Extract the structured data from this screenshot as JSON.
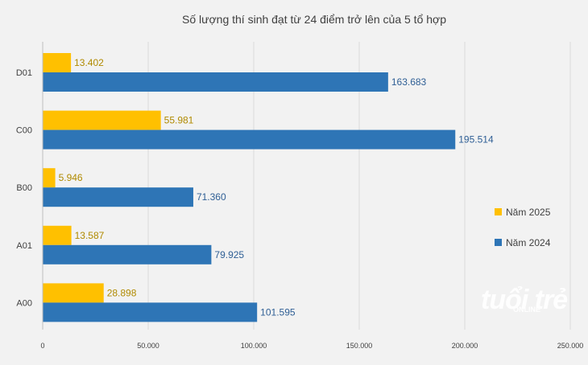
{
  "chart_data": {
    "type": "bar",
    "orientation": "horizontal",
    "title": "Số lượng thí  sinh đạt từ 24 điểm trở lên của 5 tổ hợp",
    "categories": [
      "D01",
      "C00",
      "B00",
      "A01",
      "A00"
    ],
    "series": [
      {
        "name": "Năm 2025",
        "color": "#ffc000",
        "values": [
          13402,
          55981,
          5946,
          13587,
          28898
        ],
        "labels": [
          "13.402",
          "55.981",
          "5.946",
          "13.587",
          "28.898"
        ]
      },
      {
        "name": "Năm 2024",
        "color": "#2e75b6",
        "values": [
          163683,
          195514,
          71360,
          79925,
          101595
        ],
        "labels": [
          "163.683",
          "195.514",
          "71.360",
          "79.925",
          "101.595"
        ]
      }
    ],
    "xlim": [
      0,
      250000
    ],
    "xticks": [
      0,
      50000,
      100000,
      150000,
      200000,
      250000
    ],
    "xtick_labels": [
      "0",
      "50.000",
      "100.000",
      "150.000",
      "200.000",
      "250.000"
    ],
    "grid": "vertical",
    "legend": "right"
  },
  "watermark": {
    "text": "tuổi trẻ",
    "sub": "ONLINE"
  }
}
